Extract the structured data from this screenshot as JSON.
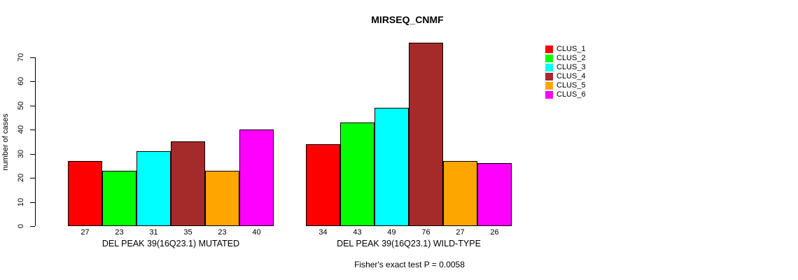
{
  "title": "MIRSEQ_CNMF",
  "y_axis_label": "number of cases",
  "footer": "Fisher's exact test P = 0.0058",
  "legend": {
    "items": [
      {
        "label": "CLUS_1",
        "color": "#FF0000"
      },
      {
        "label": "CLUS_2",
        "color": "#00FF00"
      },
      {
        "label": "CLUS_3",
        "color": "#00FFFF"
      },
      {
        "label": "CLUS_4",
        "color": "#A52A2A"
      },
      {
        "label": "CLUS_5",
        "color": "#FFA500"
      },
      {
        "label": "CLUS_6",
        "color": "#FF00FF"
      }
    ]
  },
  "chart_data": {
    "type": "bar",
    "title": "MIRSEQ_CNMF",
    "xlabel": "",
    "ylabel": "number of cases",
    "ylim": [
      0,
      70
    ],
    "yticks": [
      0,
      10,
      20,
      30,
      40,
      50,
      60,
      70
    ],
    "grid": false,
    "legend_position": "right-outside",
    "series_names": [
      "CLUS_1",
      "CLUS_2",
      "CLUS_3",
      "CLUS_4",
      "CLUS_5",
      "CLUS_6"
    ],
    "series_colors": [
      "#FF0000",
      "#00FF00",
      "#00FFFF",
      "#A52A2A",
      "#FFA500",
      "#FF00FF"
    ],
    "groups": [
      {
        "label": "DEL PEAK 39(16Q23.1) MUTATED",
        "values": [
          27,
          23,
          31,
          35,
          23,
          40
        ]
      },
      {
        "label": "DEL PEAK 39(16Q23.1) WILD-TYPE",
        "values": [
          34,
          43,
          49,
          76,
          27,
          26
        ]
      }
    ],
    "bar_value_labels_shown": true,
    "annotation": "Fisher's exact test P = 0.0058"
  }
}
